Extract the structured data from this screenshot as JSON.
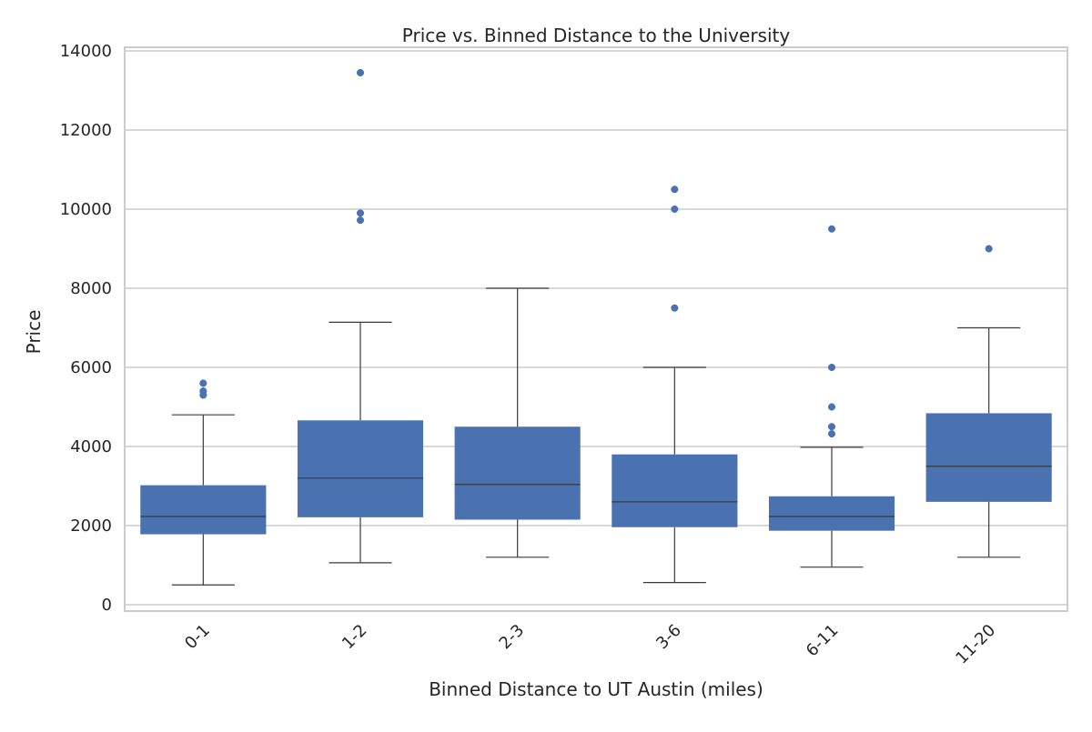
{
  "chart_data": {
    "type": "box",
    "title": "Price vs. Binned Distance to the University",
    "xlabel": "Binned Distance to UT Austin (miles)",
    "ylabel": "Price",
    "ylim": [
      -200,
      14000
    ],
    "yticks": [
      0,
      2000,
      4000,
      6000,
      8000,
      10000,
      12000,
      14000
    ],
    "ytick_labels": [
      "0",
      "2000",
      "4000",
      "6000",
      "8000",
      "10000",
      "12000",
      "14000"
    ],
    "categories": [
      "0-1",
      "1-2",
      "2-3",
      "3-6",
      "6-11",
      "11-20"
    ],
    "grid": true,
    "color": "#4a72b0",
    "line_color": "#3a3a3a",
    "boxes": [
      {
        "category": "0-1",
        "whisker_low": 500,
        "q1": 1780,
        "median": 2230,
        "q3": 3020,
        "whisker_high": 4800,
        "outliers": [
          5300,
          5400,
          5600
        ]
      },
      {
        "category": "1-2",
        "whisker_low": 1060,
        "q1": 2210,
        "median": 3200,
        "q3": 4660,
        "whisker_high": 7140,
        "outliers": [
          9720,
          9900,
          13450
        ]
      },
      {
        "category": "2-3",
        "whisker_low": 1200,
        "q1": 2150,
        "median": 3040,
        "q3": 4500,
        "whisker_high": 8000,
        "outliers": []
      },
      {
        "category": "3-6",
        "whisker_low": 560,
        "q1": 1960,
        "median": 2600,
        "q3": 3800,
        "whisker_high": 6000,
        "outliers": [
          7500,
          10000,
          10500
        ]
      },
      {
        "category": "6-11",
        "whisker_low": 950,
        "q1": 1870,
        "median": 2230,
        "q3": 2740,
        "whisker_high": 3980,
        "outliers": [
          4320,
          4500,
          5000,
          6000,
          9500
        ]
      },
      {
        "category": "11-20",
        "whisker_low": 1200,
        "q1": 2600,
        "median": 3500,
        "q3": 4840,
        "whisker_high": 7000,
        "outliers": [
          9000
        ]
      }
    ]
  }
}
